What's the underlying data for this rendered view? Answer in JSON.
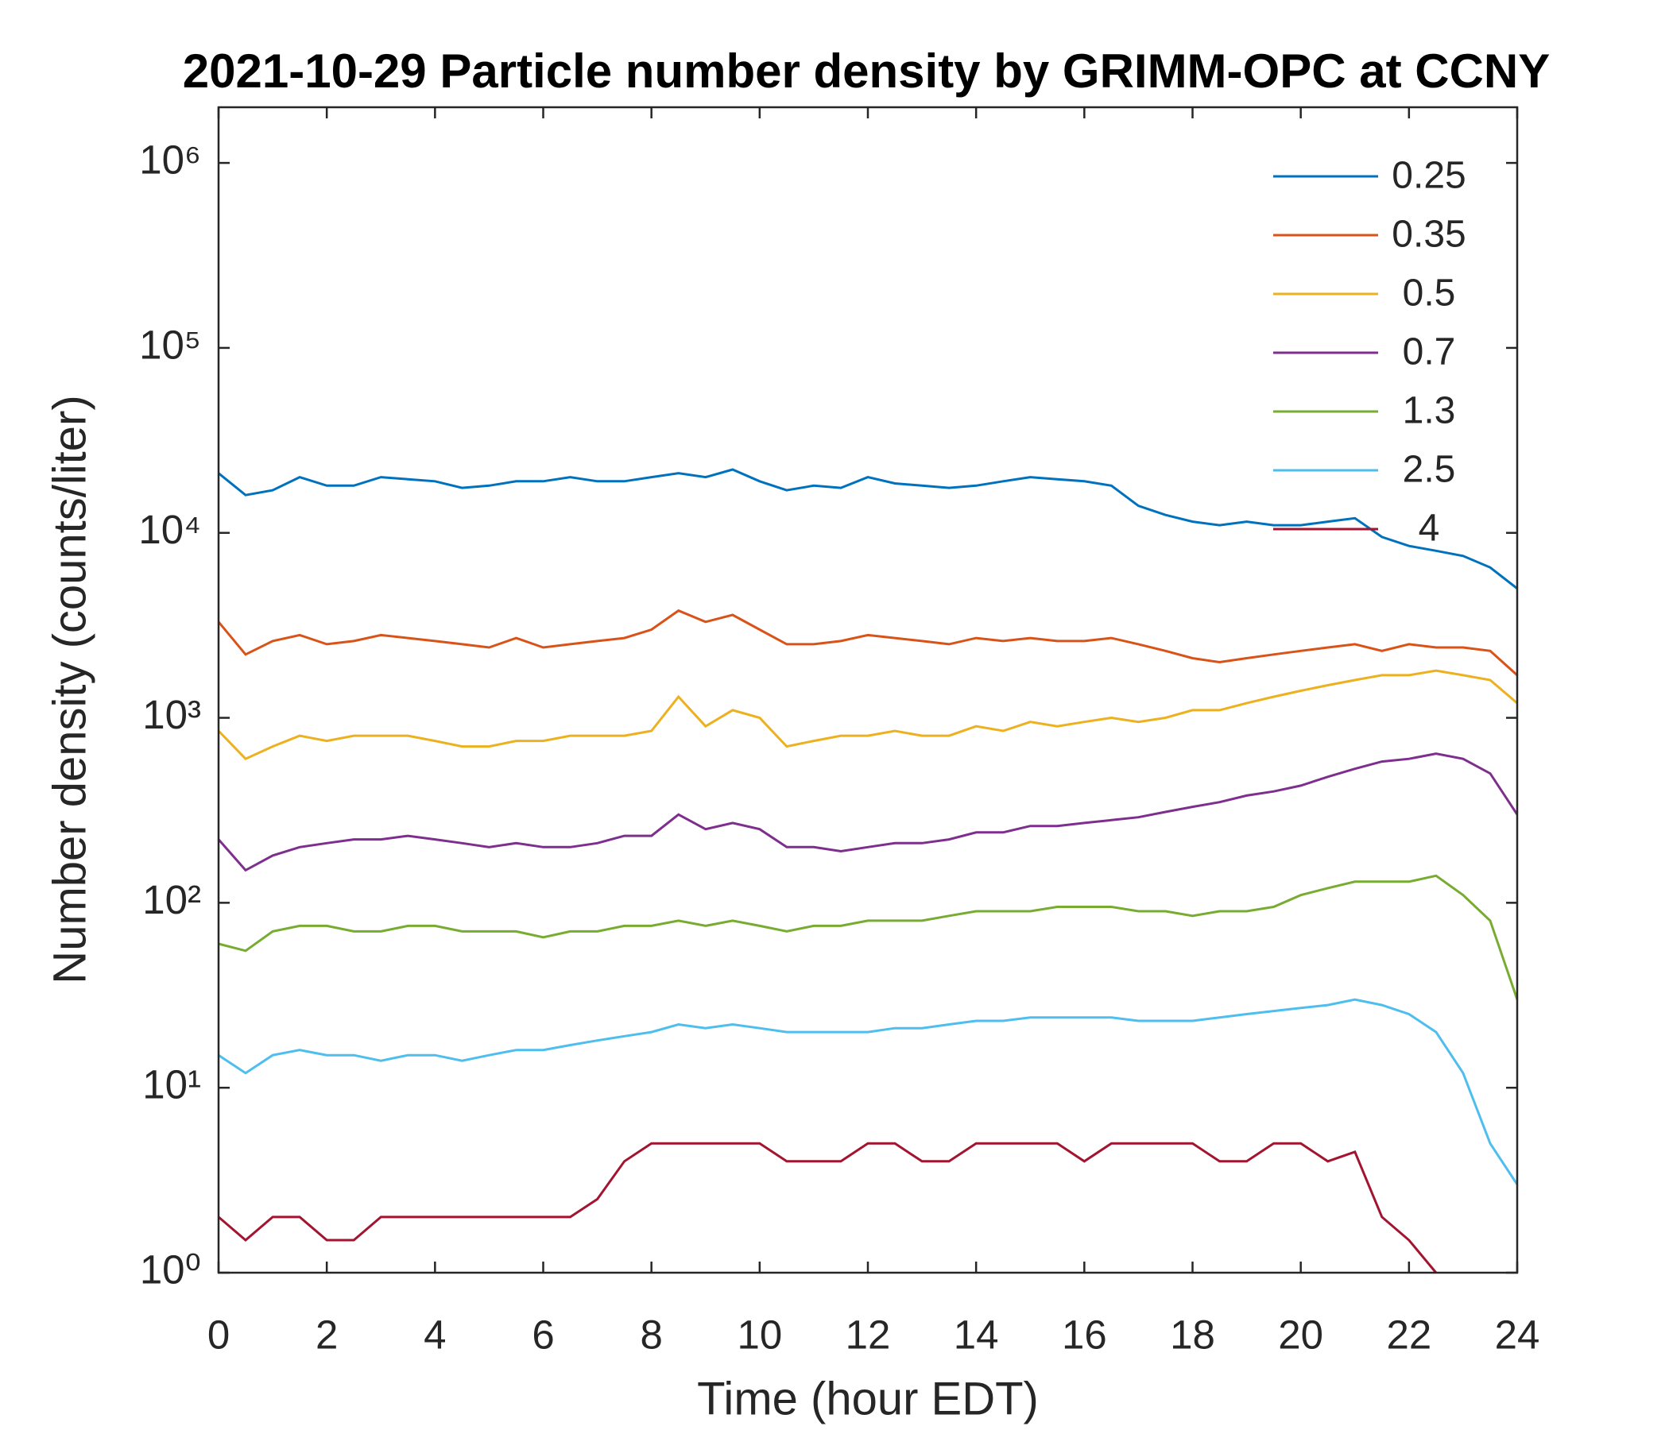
{
  "chart_data": {
    "type": "line",
    "title": "2021-10-29 Particle number density by GRIMM-OPC at CCNY",
    "x_label": "Time (hour EDT)",
    "y_label": "Number density (counts/liter)",
    "yscale": "log",
    "legend": "northeast",
    "xlim": [
      0,
      24
    ],
    "ylim": [
      1,
      2000000
    ],
    "xticks": [
      0,
      2,
      4,
      6,
      8,
      10,
      12,
      14,
      16,
      18,
      20,
      22,
      24
    ],
    "yticks": [
      {
        "value": 1,
        "label": "10⁰"
      },
      {
        "value": 10,
        "label": "10¹"
      },
      {
        "value": 100,
        "label": "10²"
      },
      {
        "value": 1000,
        "label": "10³"
      },
      {
        "value": 10000,
        "label": "10⁴"
      },
      {
        "value": 100000,
        "label": "10⁵"
      },
      {
        "value": 1000000,
        "label": "10⁶"
      }
    ],
    "x": [
      0,
      0.5,
      1,
      1.5,
      2,
      2.5,
      3,
      3.5,
      4,
      4.5,
      5,
      5.5,
      6,
      6.5,
      7,
      7.5,
      8,
      8.5,
      9,
      9.5,
      10,
      10.5,
      11,
      11.5,
      12,
      12.5,
      13,
      13.5,
      14,
      14.5,
      15,
      15.5,
      16,
      16.5,
      17,
      17.5,
      18,
      18.5,
      19,
      19.5,
      20,
      20.5,
      21,
      21.5,
      22,
      22.5,
      23,
      23.5,
      24
    ],
    "series": [
      {
        "name": "0.25",
        "color": "#0072BD",
        "values": [
          21000,
          16000,
          17000,
          20000,
          18000,
          18000,
          20000,
          19500,
          19000,
          17500,
          18000,
          19000,
          19000,
          20000,
          19000,
          19000,
          20000,
          21000,
          20000,
          22000,
          19000,
          17000,
          18000,
          17500,
          20000,
          18500,
          18000,
          17500,
          18000,
          19000,
          20000,
          19500,
          19000,
          18000,
          14000,
          12500,
          11500,
          11000,
          11500,
          11000,
          11000,
          11500,
          12000,
          9500,
          8500,
          8000,
          7500,
          6500,
          5000
        ]
      },
      {
        "name": "0.35",
        "color": "#D95319",
        "values": [
          3300,
          2200,
          2600,
          2800,
          2500,
          2600,
          2800,
          2700,
          2600,
          2500,
          2400,
          2700,
          2400,
          2500,
          2600,
          2700,
          3000,
          3800,
          3300,
          3600,
          3000,
          2500,
          2500,
          2600,
          2800,
          2700,
          2600,
          2500,
          2700,
          2600,
          2700,
          2600,
          2600,
          2700,
          2500,
          2300,
          2100,
          2000,
          2100,
          2200,
          2300,
          2400,
          2500,
          2300,
          2500,
          2400,
          2400,
          2300,
          1700
        ]
      },
      {
        "name": "0.5",
        "color": "#EDB120",
        "values": [
          850,
          600,
          700,
          800,
          750,
          800,
          800,
          800,
          750,
          700,
          700,
          750,
          750,
          800,
          800,
          800,
          850,
          1300,
          900,
          1100,
          1000,
          700,
          750,
          800,
          800,
          850,
          800,
          800,
          900,
          850,
          950,
          900,
          950,
          1000,
          950,
          1000,
          1100,
          1100,
          1200,
          1300,
          1400,
          1500,
          1600,
          1700,
          1700,
          1800,
          1700,
          1600,
          1200
        ]
      },
      {
        "name": "0.7",
        "color": "#7E2F8E",
        "values": [
          220,
          150,
          180,
          200,
          210,
          220,
          220,
          230,
          220,
          210,
          200,
          210,
          200,
          200,
          210,
          230,
          230,
          300,
          250,
          270,
          250,
          200,
          200,
          190,
          200,
          210,
          210,
          220,
          240,
          240,
          260,
          260,
          270,
          280,
          290,
          310,
          330,
          350,
          380,
          400,
          430,
          480,
          530,
          580,
          600,
          640,
          600,
          500,
          300
        ]
      },
      {
        "name": "1.3",
        "color": "#77AC30",
        "values": [
          60,
          55,
          70,
          75,
          75,
          70,
          70,
          75,
          75,
          70,
          70,
          70,
          65,
          70,
          70,
          75,
          75,
          80,
          75,
          80,
          75,
          70,
          75,
          75,
          80,
          80,
          80,
          85,
          90,
          90,
          90,
          95,
          95,
          95,
          90,
          90,
          85,
          90,
          90,
          95,
          110,
          120,
          130,
          130,
          130,
          140,
          110,
          80,
          30
        ]
      },
      {
        "name": "2.5",
        "color": "#4DBEEE",
        "values": [
          15,
          12,
          15,
          16,
          15,
          15,
          14,
          15,
          15,
          14,
          15,
          16,
          16,
          17,
          18,
          19,
          20,
          22,
          21,
          22,
          21,
          20,
          20,
          20,
          20,
          21,
          21,
          22,
          23,
          23,
          24,
          24,
          24,
          24,
          23,
          23,
          23,
          24,
          25,
          26,
          27,
          28,
          30,
          28,
          25,
          20,
          12,
          5,
          3
        ]
      },
      {
        "name": "4",
        "color": "#A2142F",
        "values": [
          2,
          1.5,
          2,
          2,
          1.5,
          1.5,
          2,
          2,
          2,
          2,
          2,
          2,
          2,
          2,
          2.5,
          4,
          5,
          5,
          5,
          5,
          5,
          4,
          4,
          4,
          5,
          5,
          4,
          4,
          5,
          5,
          5,
          5,
          4,
          5,
          5,
          5,
          5,
          4,
          4,
          5,
          5,
          4,
          4.5,
          2,
          1.5,
          1,
          null,
          null,
          null
        ]
      }
    ]
  }
}
